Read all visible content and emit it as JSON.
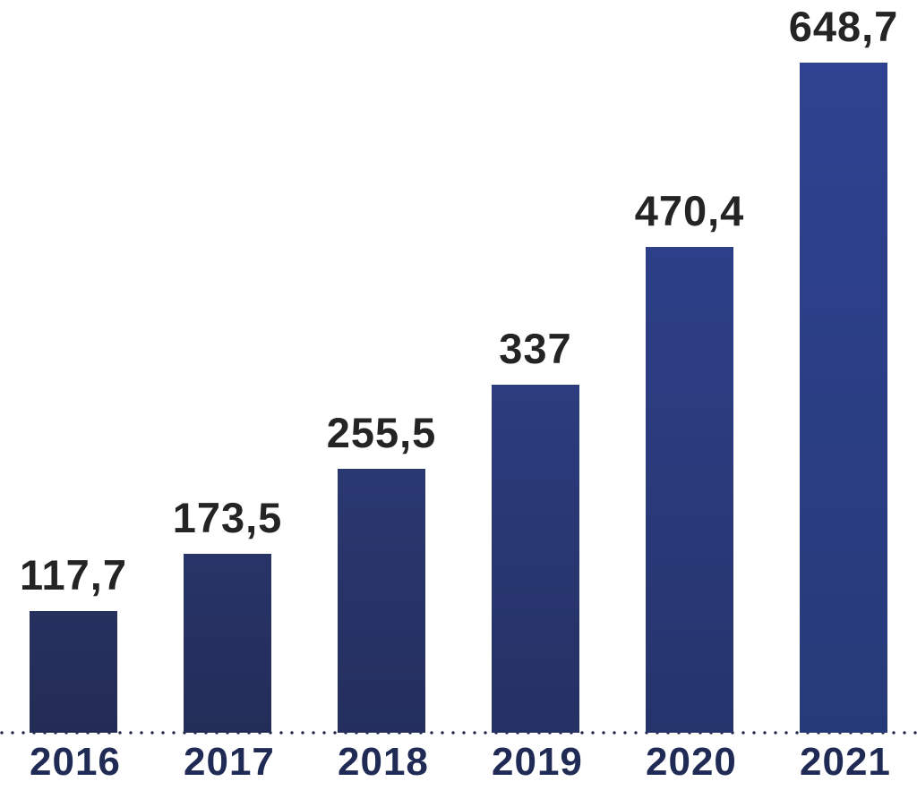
{
  "chart_data": {
    "type": "bar",
    "title": "",
    "xlabel": "",
    "ylabel": "",
    "categories": [
      "2016",
      "2017",
      "2018",
      "2019",
      "2020",
      "2021"
    ],
    "values": [
      117.7,
      173.5,
      255.5,
      337,
      470.4,
      648.7
    ],
    "value_labels": [
      "117,7",
      "173,5",
      "255,5",
      "337",
      "470,4",
      "648,7"
    ],
    "decimal_separator": ",",
    "ylim": [
      0,
      700
    ],
    "grid": false,
    "legend": false,
    "baseline_style": "dotted",
    "colors": {
      "value_label": "#242424",
      "axis_label": "#1f2a55",
      "baseline_dots": "#1d2342",
      "background": "#ffffff",
      "bar_gradients": [
        {
          "top": "#27315f",
          "bottom": "#222c55"
        },
        {
          "top": "#283468",
          "bottom": "#232d58"
        },
        {
          "top": "#2a3872",
          "bottom": "#242f5d"
        },
        {
          "top": "#2c3c7e",
          "bottom": "#253164"
        },
        {
          "top": "#2d3f88",
          "bottom": "#26346c"
        },
        {
          "top": "#2e4291",
          "bottom": "#273a78"
        }
      ]
    }
  }
}
